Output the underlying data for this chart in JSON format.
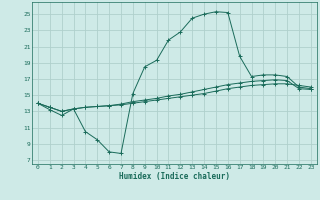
{
  "xlabel": "Humidex (Indice chaleur)",
  "bg_color": "#ceeae7",
  "grid_color": "#b0d0cc",
  "line_color": "#1a6b5a",
  "xlim": [
    -0.5,
    23.5
  ],
  "ylim": [
    6.5,
    26.5
  ],
  "yticks": [
    7,
    9,
    11,
    13,
    15,
    17,
    19,
    21,
    23,
    25
  ],
  "xticks": [
    0,
    1,
    2,
    3,
    4,
    5,
    6,
    7,
    8,
    9,
    10,
    11,
    12,
    13,
    14,
    15,
    16,
    17,
    18,
    19,
    20,
    21,
    22,
    23
  ],
  "series1_x": [
    0,
    1,
    2,
    3,
    4,
    5,
    6,
    7,
    8,
    9,
    10,
    11,
    12,
    13,
    14,
    15,
    16,
    17,
    18,
    19,
    20,
    21,
    22,
    23
  ],
  "series1_y": [
    14.0,
    13.2,
    12.5,
    13.3,
    10.5,
    9.5,
    8.0,
    7.8,
    15.2,
    18.5,
    19.3,
    21.8,
    22.8,
    24.5,
    25.0,
    25.3,
    25.2,
    19.8,
    17.3,
    17.5,
    17.5,
    17.3,
    16.0,
    15.8
  ],
  "series2_x": [
    0,
    1,
    2,
    3,
    4,
    5,
    6,
    7,
    8,
    9,
    10,
    11,
    12,
    13,
    14,
    15,
    16,
    17,
    18,
    19,
    20,
    21,
    22,
    23
  ],
  "series2_y": [
    14.0,
    13.5,
    13.0,
    13.3,
    13.5,
    13.6,
    13.7,
    13.8,
    14.0,
    14.2,
    14.4,
    14.6,
    14.8,
    15.0,
    15.2,
    15.5,
    15.8,
    16.0,
    16.2,
    16.3,
    16.4,
    16.4,
    16.2,
    16.0
  ],
  "series3_x": [
    0,
    1,
    2,
    3,
    4,
    5,
    6,
    7,
    8,
    9,
    10,
    11,
    12,
    13,
    14,
    15,
    16,
    17,
    18,
    19,
    20,
    21,
    22,
    23
  ],
  "series3_y": [
    14.0,
    13.5,
    13.0,
    13.3,
    13.5,
    13.6,
    13.7,
    13.9,
    14.2,
    14.4,
    14.6,
    14.9,
    15.1,
    15.4,
    15.7,
    16.0,
    16.3,
    16.5,
    16.7,
    16.8,
    16.9,
    16.8,
    15.8,
    15.7
  ]
}
